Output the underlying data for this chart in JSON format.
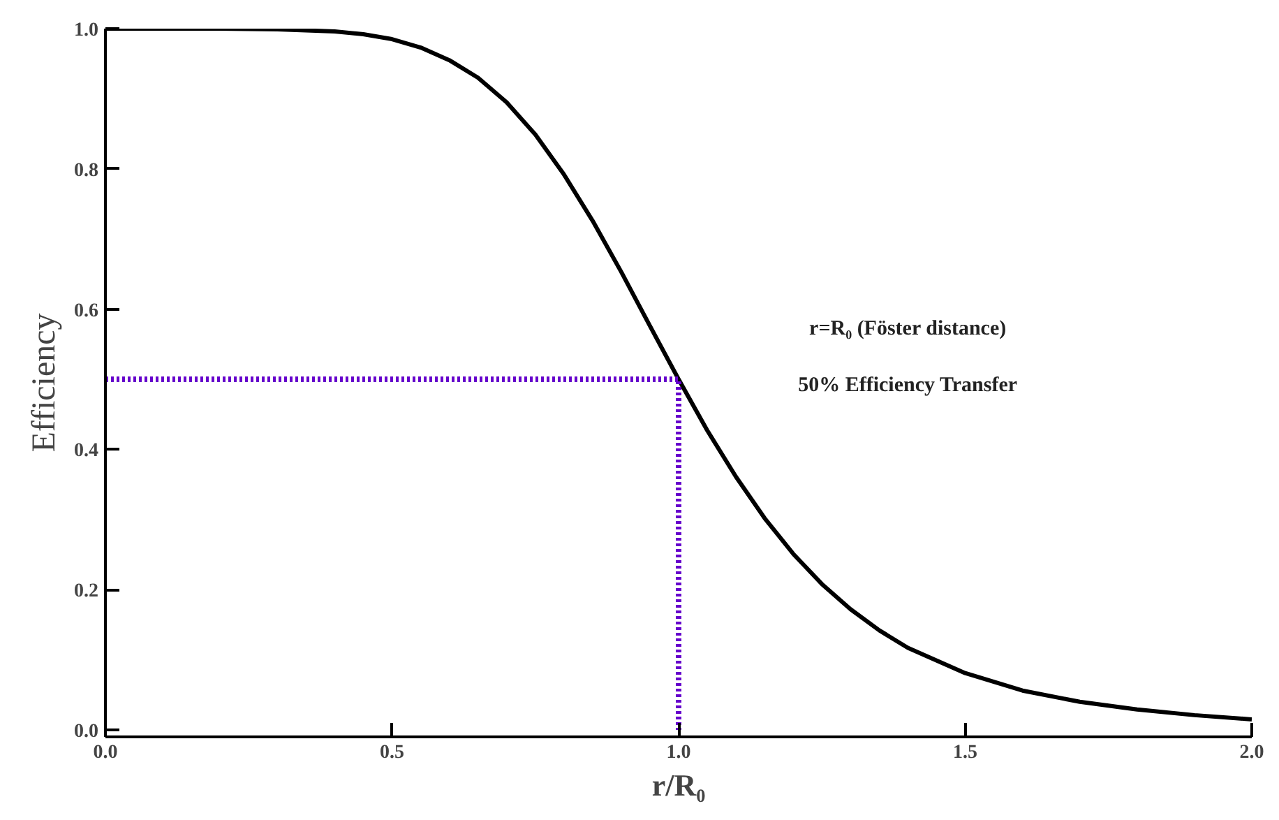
{
  "chart_data": {
    "type": "line",
    "xlabel": "r/R₀",
    "ylabel": "Efficiency",
    "annotations": [
      "r=R₀ (Föster distance)",
      "50% Efficiency Transfer"
    ],
    "xlim": [
      0,
      2
    ],
    "ylim": [
      -0.01,
      1.0
    ],
    "xticks": [
      {
        "value": 0,
        "label": "0.0"
      },
      {
        "value": 0.5,
        "label": "0.5"
      },
      {
        "value": 1,
        "label": "1.0"
      },
      {
        "value": 1.5,
        "label": "1.5"
      },
      {
        "value": 2,
        "label": "2.0"
      }
    ],
    "yticks": [
      {
        "value": 0,
        "label": "0.0"
      },
      0.2,
      0.4,
      0.6,
      0.8,
      {
        "value": 1,
        "label": "1.0"
      }
    ],
    "grid": false,
    "marker": "none",
    "series": [
      {
        "color": "#000000",
        "line_style": "solid",
        "x": [
          0,
          0.1,
          0.2,
          0.3,
          0.4,
          0.45,
          0.5,
          0.55,
          0.6,
          0.65,
          0.7,
          0.75,
          0.8,
          0.85,
          0.9,
          0.95,
          1.0,
          1.05,
          1.1,
          1.15,
          1.2,
          1.25,
          1.3,
          1.35,
          1.4,
          1.5,
          1.6,
          1.7,
          1.8,
          1.9,
          2.0
        ],
        "values": [
          1.0,
          1.0,
          1.0,
          0.999,
          0.996,
          0.992,
          0.985,
          0.973,
          0.955,
          0.93,
          0.895,
          0.849,
          0.792,
          0.726,
          0.653,
          0.576,
          0.5,
          0.427,
          0.361,
          0.302,
          0.251,
          0.208,
          0.172,
          0.142,
          0.117,
          0.081,
          0.056,
          0.04,
          0.029,
          0.021,
          0.015
        ]
      },
      {
        "color": "#6600cc",
        "line_style": "dotted",
        "x": [
          0,
          1,
          1
        ],
        "values": [
          0.5,
          0.5,
          0
        ]
      }
    ]
  }
}
